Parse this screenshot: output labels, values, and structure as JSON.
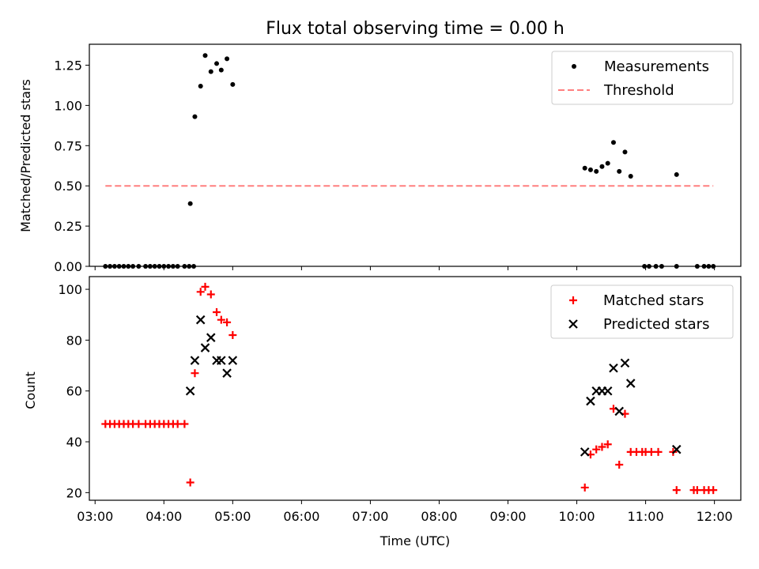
{
  "chart_data": [
    {
      "type": "scatter",
      "title": "Flux total observing time = 0.00 h",
      "xlabel": "",
      "ylabel": "Matched/Predicted stars",
      "ylim": [
        0,
        1.38
      ],
      "xlim": [
        "02:55",
        "12:23"
      ],
      "yticks": [
        "0.00",
        "0.25",
        "0.50",
        "0.75",
        "1.00",
        "1.25"
      ],
      "legend_position": "top-right",
      "series": [
        {
          "name": "Measurements",
          "color": "#000000",
          "marker": "dot",
          "points": [
            [
              "03:09",
              0
            ],
            [
              "03:13",
              0
            ],
            [
              "03:17",
              0
            ],
            [
              "03:21",
              0
            ],
            [
              "03:25",
              0
            ],
            [
              "03:29",
              0
            ],
            [
              "03:33",
              0
            ],
            [
              "03:38",
              0
            ],
            [
              "03:44",
              0
            ],
            [
              "03:48",
              0
            ],
            [
              "03:52",
              0
            ],
            [
              "03:56",
              0
            ],
            [
              "04:00",
              0
            ],
            [
              "04:04",
              0
            ],
            [
              "04:08",
              0
            ],
            [
              "04:12",
              0
            ],
            [
              "04:18",
              0
            ],
            [
              "04:22",
              0
            ],
            [
              "04:26",
              0
            ],
            [
              "04:23",
              0.39
            ],
            [
              "04:27",
              0.93
            ],
            [
              "04:32",
              1.12
            ],
            [
              "04:36",
              1.31
            ],
            [
              "04:41",
              1.21
            ],
            [
              "04:46",
              1.26
            ],
            [
              "04:50",
              1.22
            ],
            [
              "04:55",
              1.29
            ],
            [
              "05:00",
              1.13
            ],
            [
              "10:07",
              0.61
            ],
            [
              "10:12",
              0.6
            ],
            [
              "10:17",
              0.59
            ],
            [
              "10:22",
              0.62
            ],
            [
              "10:27",
              0.64
            ],
            [
              "10:32",
              0.77
            ],
            [
              "10:37",
              0.59
            ],
            [
              "10:42",
              0.71
            ],
            [
              "10:47",
              0.56
            ],
            [
              "11:27",
              0.57
            ],
            [
              "10:59",
              0
            ],
            [
              "11:03",
              0
            ],
            [
              "11:09",
              0
            ],
            [
              "11:14",
              0
            ],
            [
              "11:27",
              0
            ],
            [
              "11:45",
              0
            ],
            [
              "11:51",
              0
            ],
            [
              "11:55",
              0
            ],
            [
              "11:59",
              0
            ]
          ]
        },
        {
          "name": "Threshold",
          "color": "#ff7f7f",
          "style": "dashed",
          "value": 0.5,
          "x_range": [
            "03:09",
            "11:59"
          ]
        }
      ]
    },
    {
      "type": "scatter",
      "title": "",
      "xlabel": "Time (UTC)",
      "ylabel": "Count",
      "ylim": [
        17,
        105
      ],
      "xlim": [
        "02:55",
        "12:23"
      ],
      "yticks": [
        "20",
        "40",
        "60",
        "80",
        "100"
      ],
      "xticks": [
        "03:00",
        "04:00",
        "05:00",
        "06:00",
        "07:00",
        "08:00",
        "09:00",
        "10:00",
        "11:00",
        "12:00"
      ],
      "legend_position": "top-right",
      "series": [
        {
          "name": "Matched stars",
          "color": "#ff0000",
          "marker": "plus",
          "points": [
            [
              "03:09",
              47
            ],
            [
              "03:13",
              47
            ],
            [
              "03:17",
              47
            ],
            [
              "03:21",
              47
            ],
            [
              "03:25",
              47
            ],
            [
              "03:29",
              47
            ],
            [
              "03:33",
              47
            ],
            [
              "03:38",
              47
            ],
            [
              "03:44",
              47
            ],
            [
              "03:48",
              47
            ],
            [
              "03:52",
              47
            ],
            [
              "03:56",
              47
            ],
            [
              "04:00",
              47
            ],
            [
              "04:04",
              47
            ],
            [
              "04:08",
              47
            ],
            [
              "04:12",
              47
            ],
            [
              "04:18",
              47
            ],
            [
              "04:23",
              24
            ],
            [
              "04:27",
              67
            ],
            [
              "04:32",
              99
            ],
            [
              "04:36",
              101
            ],
            [
              "04:41",
              98
            ],
            [
              "04:46",
              91
            ],
            [
              "04:50",
              88
            ],
            [
              "04:55",
              87
            ],
            [
              "05:00",
              82
            ],
            [
              "10:07",
              22
            ],
            [
              "10:12",
              35
            ],
            [
              "10:17",
              37
            ],
            [
              "10:22",
              38
            ],
            [
              "10:27",
              39
            ],
            [
              "10:32",
              53
            ],
            [
              "10:37",
              31
            ],
            [
              "10:42",
              51
            ],
            [
              "10:47",
              36
            ],
            [
              "10:52",
              36
            ],
            [
              "10:57",
              36
            ],
            [
              "11:00",
              36
            ],
            [
              "11:05",
              36
            ],
            [
              "11:11",
              36
            ],
            [
              "11:24",
              36
            ],
            [
              "11:27",
              21
            ],
            [
              "11:42",
              21
            ],
            [
              "11:45",
              21
            ],
            [
              "11:51",
              21
            ],
            [
              "11:55",
              21
            ],
            [
              "11:59",
              21
            ]
          ]
        },
        {
          "name": "Predicted stars",
          "color": "#000000",
          "marker": "x",
          "points": [
            [
              "04:23",
              60
            ],
            [
              "04:27",
              72
            ],
            [
              "04:32",
              88
            ],
            [
              "04:36",
              77
            ],
            [
              "04:41",
              81
            ],
            [
              "04:46",
              72
            ],
            [
              "04:50",
              72
            ],
            [
              "04:55",
              67
            ],
            [
              "05:00",
              72
            ],
            [
              "10:07",
              36
            ],
            [
              "10:12",
              56
            ],
            [
              "10:17",
              60
            ],
            [
              "10:22",
              60
            ],
            [
              "10:27",
              60
            ],
            [
              "10:32",
              69
            ],
            [
              "10:37",
              52
            ],
            [
              "10:42",
              71
            ],
            [
              "10:47",
              63
            ],
            [
              "11:27",
              37
            ]
          ]
        }
      ]
    }
  ]
}
